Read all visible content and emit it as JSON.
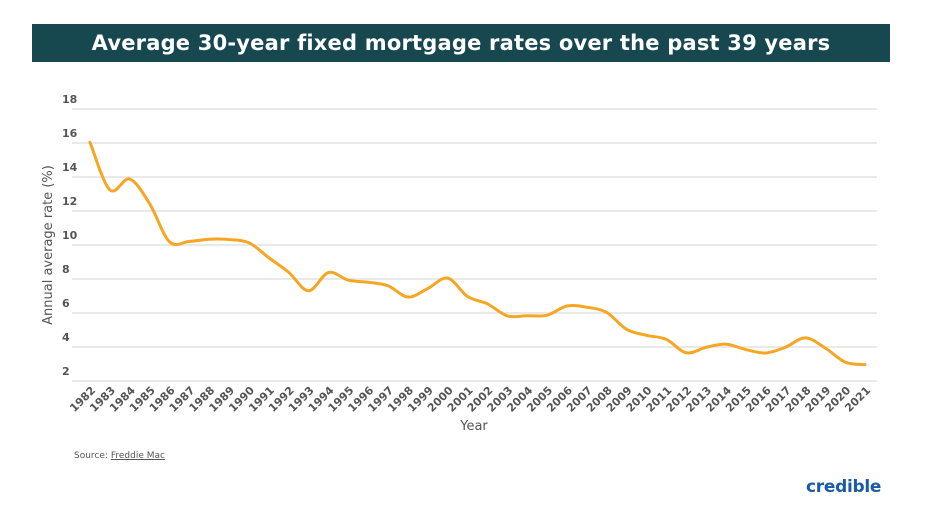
{
  "chart_data": {
    "type": "line",
    "title": "Average 30-year fixed mortgage rates over the past 39 years",
    "xlabel": "Year",
    "ylabel": "Annual average rate (%)",
    "ylim": [
      2,
      18
    ],
    "yticks": [
      "18",
      "16",
      "14",
      "12",
      "10",
      "8",
      "6",
      "4",
      "2"
    ],
    "grid": true,
    "line_color": "#f5a623",
    "x": [
      "1982",
      "1983",
      "1984",
      "1985",
      "1986",
      "1987",
      "1988",
      "1989",
      "1990",
      "1991",
      "1992",
      "1993",
      "1994",
      "1995",
      "1996",
      "1997",
      "1998",
      "1999",
      "2000",
      "2001",
      "2002",
      "2003",
      "2004",
      "2005",
      "2006",
      "2007",
      "2008",
      "2009",
      "2010",
      "2011",
      "2012",
      "2013",
      "2014",
      "2015",
      "2016",
      "2017",
      "2018",
      "2019",
      "2020",
      "2021"
    ],
    "values": [
      16.04,
      13.24,
      13.88,
      12.43,
      10.19,
      10.21,
      10.34,
      10.32,
      10.13,
      9.25,
      8.39,
      7.31,
      8.38,
      7.93,
      7.81,
      7.6,
      6.94,
      7.44,
      8.05,
      6.97,
      6.54,
      5.83,
      5.84,
      5.87,
      6.41,
      6.34,
      6.03,
      5.04,
      4.69,
      4.45,
      3.66,
      3.98,
      4.17,
      3.85,
      3.65,
      3.99,
      4.54,
      3.94,
      3.11,
      2.96
    ]
  },
  "source": {
    "label": "Source:",
    "link": "Freddie Mac"
  },
  "logo": "credible",
  "colors": {
    "title_bar": "#17474f",
    "line": "#f5a623",
    "logo": "#1b5aa6"
  }
}
